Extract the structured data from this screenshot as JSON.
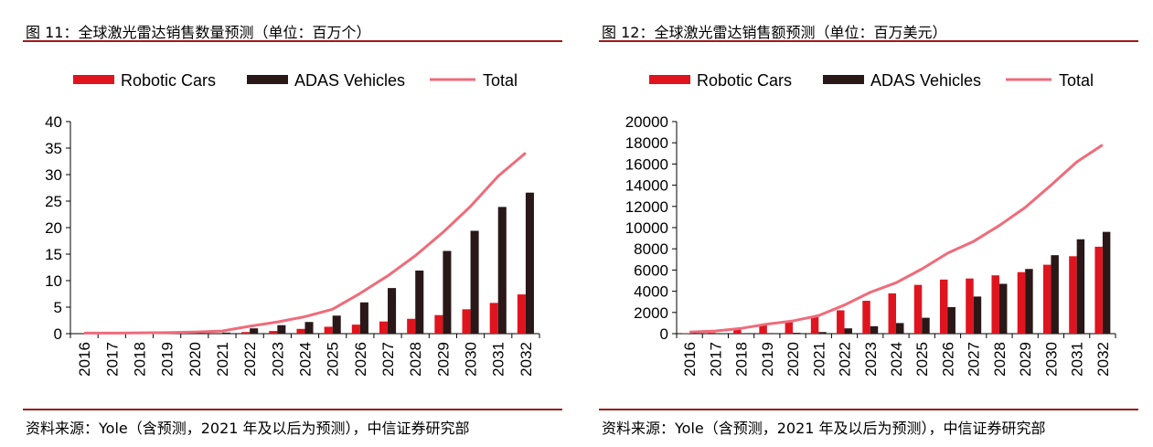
{
  "colors": {
    "robotic": "#e0141e",
    "adas": "#2a1818",
    "total": "#f06b7a",
    "rule": "#9b1c1c"
  },
  "charts": [
    {
      "title": "图 11：全球激光雷达销售数量预测（单位：百万个）",
      "source": "资料来源：Yole（含预测，2021 年及以后为预测），中信证券研究部",
      "chart_data": {
        "type": "bar",
        "categories": [
          "2016",
          "2017",
          "2018",
          "2019",
          "2020",
          "2021",
          "2022",
          "2023",
          "2024",
          "2025",
          "2026",
          "2027",
          "2028",
          "2029",
          "2030",
          "2031",
          "2032"
        ],
        "series": [
          {
            "name": "Robotic Cars",
            "type": "bar",
            "values": [
              0,
              0,
              0,
              0,
              0,
              0,
              0.3,
              0.5,
              0.9,
              1.3,
              1.7,
              2.3,
              2.8,
              3.5,
              4.6,
              5.8,
              7.4
            ]
          },
          {
            "name": "ADAS Vehicles",
            "type": "bar",
            "values": [
              0,
              0,
              0,
              0,
              0,
              0.2,
              1.0,
              1.6,
              2.2,
              3.4,
              5.9,
              8.6,
              11.9,
              15.6,
              19.4,
              23.9,
              26.6
            ]
          },
          {
            "name": "Total",
            "type": "line",
            "values": [
              0.1,
              0.1,
              0.15,
              0.2,
              0.3,
              0.5,
              1.4,
              2.2,
              3.2,
              4.6,
              7.6,
              10.9,
              14.7,
              19.1,
              24.0,
              29.7,
              34.1
            ]
          }
        ],
        "ylim": [
          0,
          40
        ],
        "yticks": [
          "0",
          "5",
          "10",
          "15",
          "20",
          "25",
          "30",
          "35",
          "40"
        ],
        "legend": "top"
      }
    },
    {
      "title": "图 12：全球激光雷达销售额预测（单位：百万美元）",
      "source": "资料来源：Yole（含预测，2021 年及以后为预测），中信证券研究部",
      "chart_data": {
        "type": "bar",
        "categories": [
          "2016",
          "2017",
          "2018",
          "2019",
          "2020",
          "2021",
          "2022",
          "2023",
          "2024",
          "2025",
          "2026",
          "2027",
          "2028",
          "2029",
          "2030",
          "2031",
          "2032"
        ],
        "series": [
          {
            "name": "Robotic Cars",
            "type": "bar",
            "values": [
              50,
              100,
              400,
              800,
              1100,
              1600,
              2200,
              3100,
              3800,
              4600,
              5100,
              5200,
              5500,
              5800,
              6500,
              7300,
              8200
            ]
          },
          {
            "name": "ADAS Vehicles",
            "type": "bar",
            "values": [
              0,
              0,
              0,
              50,
              80,
              150,
              500,
              700,
              1000,
              1500,
              2500,
              3500,
              4700,
              6100,
              7400,
              8900,
              9600
            ]
          },
          {
            "name": "Total",
            "type": "line",
            "values": [
              150,
              250,
              500,
              900,
              1200,
              1700,
              2700,
              3900,
              4800,
              6100,
              7600,
              8700,
              10200,
              11900,
              14000,
              16200,
              17800
            ]
          }
        ],
        "ylim": [
          0,
          20000
        ],
        "yticks": [
          "0",
          "2000",
          "4000",
          "6000",
          "8000",
          "10000",
          "12000",
          "14000",
          "16000",
          "18000",
          "20000"
        ],
        "legend": "top"
      }
    }
  ]
}
